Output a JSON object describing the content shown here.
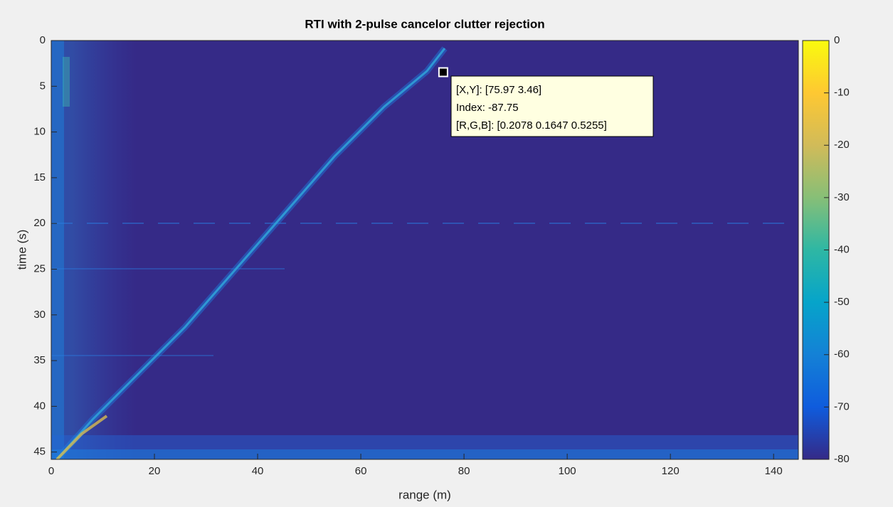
{
  "chart_data": {
    "type": "heatmap",
    "title": "RTI with 2-pulse cancelor clutter rejection",
    "x_label": "range (m)",
    "y_label": "time (s)",
    "xlim": [
      0,
      144.8
    ],
    "xticks": [
      0,
      20,
      40,
      60,
      80,
      100,
      120,
      140
    ],
    "ylim": [
      0,
      45.8
    ],
    "yticks": [
      0,
      5,
      10,
      15,
      20,
      25,
      30,
      35,
      40,
      45
    ],
    "y_reversed": true,
    "clim": [
      -80,
      0
    ],
    "cticks": [
      0,
      -10,
      -20,
      -30,
      -40,
      -50,
      -60,
      -70,
      -80
    ],
    "colormap": [
      "#352a87",
      "#0f5cdd",
      "#1481d6",
      "#06a4ca",
      "#2eb7a4",
      "#87bf77",
      "#d1bb59",
      "#fec832",
      "#f9fb0e"
    ],
    "datatip": {
      "x": 75.97,
      "y": 3.46,
      "lines": [
        "[X,Y]: [75.97 3.46]",
        "Index: -87.75",
        "[R,G,B]: [0.2078 0.1647 0.5255]"
      ]
    }
  }
}
